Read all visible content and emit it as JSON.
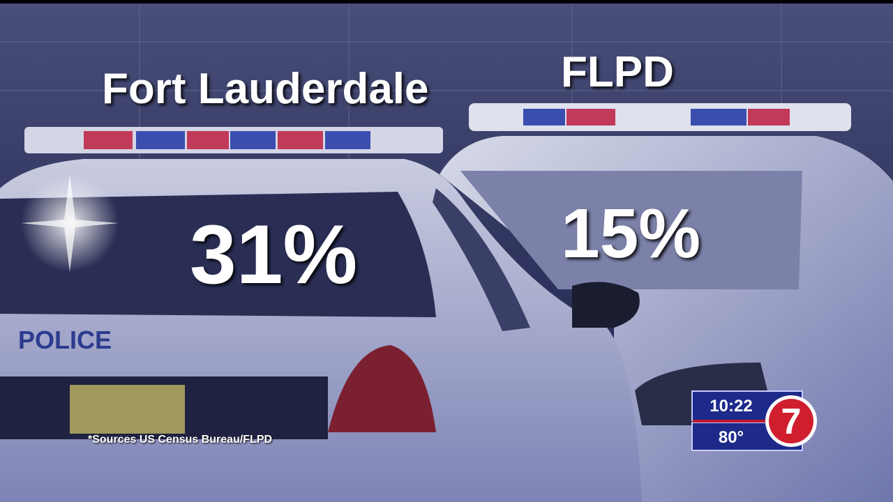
{
  "left": {
    "label": "Fort Lauderdale",
    "percent": "31%"
  },
  "right": {
    "label": "FLPD",
    "percent": "15%"
  },
  "source": "*Sources US Census Bureau/FLPD",
  "scene_text": "POLICE",
  "bug": {
    "time": "10:22",
    "temperature": "80°",
    "logo": "7"
  }
}
